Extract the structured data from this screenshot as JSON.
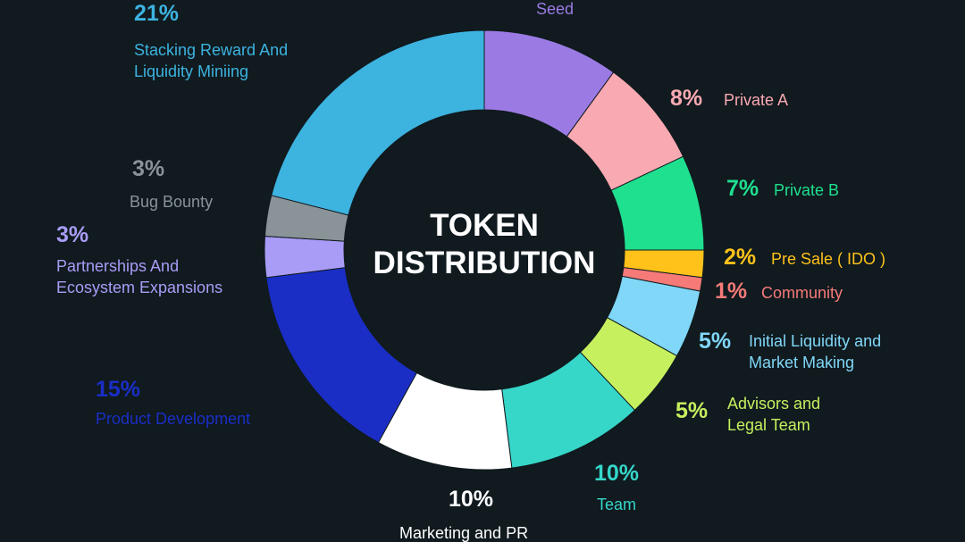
{
  "chart_data": {
    "type": "donut",
    "title": "TOKEN DISTRIBUTION",
    "categories": [
      "Seed",
      "Private A",
      "Private B",
      "Pre Sale ( IDO )",
      "Community",
      "Initial Liquidity and Market Making",
      "Advisors and Legal Team",
      "Team",
      "Marketing and PR",
      "Product Development",
      "Partnerships And Ecosystem Expansions",
      "Bug Bounty",
      "Stacking Reward And Liquidity Miniing"
    ],
    "values": [
      10,
      8,
      7,
      2,
      1,
      5,
      5,
      10,
      10,
      15,
      3,
      3,
      21
    ],
    "value_labels": [
      null,
      "8%",
      "7%",
      "2%",
      "1%",
      "5%",
      "5%",
      "10%",
      "10%",
      "15%",
      "3%",
      "3%",
      "21%"
    ],
    "colors": [
      "#9b7be3",
      "#f9a9b1",
      "#1fe08f",
      "#ffc21a",
      "#f57a78",
      "#80d7f7",
      "#c7f05f",
      "#36d6c9",
      "#ffffff",
      "#1a2ec6",
      "#a99cf6",
      "#8a9398",
      "#3db3e0"
    ]
  }
}
